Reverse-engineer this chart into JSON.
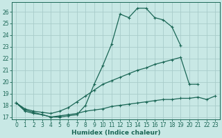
{
  "xlabel": "Humidex (Indice chaleur)",
  "xlim": [
    -0.5,
    23.5
  ],
  "ylim": [
    16.8,
    26.8
  ],
  "xticks": [
    0,
    1,
    2,
    3,
    4,
    5,
    6,
    7,
    8,
    9,
    10,
    11,
    12,
    13,
    14,
    15,
    16,
    17,
    18,
    19,
    20,
    21,
    22,
    23
  ],
  "yticks": [
    17,
    18,
    19,
    20,
    21,
    22,
    23,
    24,
    25,
    26
  ],
  "bg": "#c8e8e5",
  "grid_color": "#a8ccca",
  "lc": "#1a6655",
  "curve1_x": [
    0,
    1,
    2,
    3,
    4,
    5,
    6,
    7,
    8,
    9,
    10,
    11,
    12,
    13,
    14,
    15,
    16,
    17,
    18,
    19
  ],
  "curve1_y": [
    18.2,
    17.5,
    17.3,
    17.2,
    17.0,
    17.0,
    17.1,
    17.2,
    18.0,
    19.8,
    21.4,
    23.2,
    25.8,
    25.5,
    26.3,
    26.3,
    25.5,
    25.3,
    24.7,
    23.1
  ],
  "curve2_x": [
    0,
    1,
    2,
    3,
    4,
    5,
    6,
    7,
    8,
    9,
    10,
    11,
    12,
    13,
    14,
    15,
    16,
    17,
    18,
    19,
    20,
    21
  ],
  "curve2_y": [
    18.2,
    17.7,
    17.5,
    17.4,
    17.3,
    17.5,
    17.8,
    18.3,
    18.8,
    19.3,
    19.8,
    20.1,
    20.4,
    20.7,
    21.0,
    21.2,
    21.5,
    21.7,
    21.9,
    22.1,
    19.8,
    19.8
  ],
  "curve3_x": [
    0,
    1,
    2,
    3,
    4,
    5,
    6,
    7,
    8,
    9,
    10,
    11,
    12,
    13,
    14,
    15,
    16,
    17,
    18,
    19,
    20,
    21,
    22,
    23
  ],
  "curve3_y": [
    18.2,
    17.6,
    17.4,
    17.2,
    17.0,
    17.1,
    17.2,
    17.3,
    17.5,
    17.6,
    17.7,
    17.9,
    18.0,
    18.1,
    18.2,
    18.3,
    18.4,
    18.5,
    18.5,
    18.6,
    18.6,
    18.7,
    18.5,
    18.8
  ]
}
